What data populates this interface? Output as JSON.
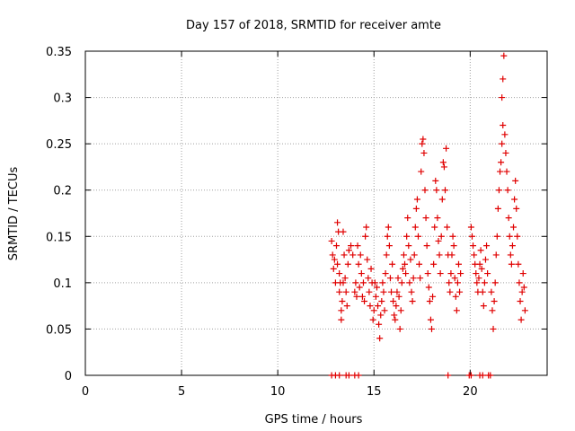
{
  "colors": {
    "marker": "#e00000",
    "grid": "#a0a0a0",
    "axis": "#000000"
  },
  "chart_data": {
    "type": "scatter",
    "title": "Day 157 of 2018, SRMTID for receiver amte",
    "xlabel": "GPS time / hours",
    "ylabel": "SRMTID / TECUs",
    "xlim": [
      0,
      24
    ],
    "ylim": [
      0,
      0.35
    ],
    "xticks": [
      0,
      5,
      10,
      15,
      20
    ],
    "xtick_labels": [
      "0",
      "5",
      "10",
      "15",
      "20"
    ],
    "yticks": [
      0,
      0.05,
      0.1,
      0.15,
      0.2,
      0.25,
      0.3,
      0.35
    ],
    "ytick_labels": [
      "0",
      "0.05",
      "0.1",
      "0.15",
      "0.2",
      "0.25",
      "0.3",
      "0.35"
    ],
    "grid": true,
    "legend": "none",
    "marker": "plus",
    "series": [
      {
        "points": [
          [
            12.8,
            0.145
          ],
          [
            12.85,
            0.13
          ],
          [
            12.9,
            0.115
          ],
          [
            12.95,
            0.125
          ],
          [
            13.0,
            0.1
          ],
          [
            13.05,
            0.14
          ],
          [
            13.1,
            0.12
          ],
          [
            13.1,
            0.165
          ],
          [
            13.15,
            0.155
          ],
          [
            13.2,
            0.11
          ],
          [
            13.2,
            0.09
          ],
          [
            13.25,
            0.1
          ],
          [
            13.3,
            0.07
          ],
          [
            13.3,
            0.06
          ],
          [
            13.35,
            0.08
          ],
          [
            13.4,
            0.1
          ],
          [
            13.4,
            0.155
          ],
          [
            13.45,
            0.13
          ],
          [
            13.5,
            0.105
          ],
          [
            13.55,
            0.09
          ],
          [
            13.6,
            0.075
          ],
          [
            13.65,
            0.12
          ],
          [
            13.7,
            0.135
          ],
          [
            13.8,
            0.14
          ],
          [
            13.9,
            0.13
          ],
          [
            14.0,
            0.09
          ],
          [
            14.05,
            0.1
          ],
          [
            14.1,
            0.085
          ],
          [
            14.15,
            0.14
          ],
          [
            14.2,
            0.12
          ],
          [
            14.25,
            0.095
          ],
          [
            14.3,
            0.13
          ],
          [
            14.35,
            0.11
          ],
          [
            14.4,
            0.085
          ],
          [
            14.45,
            0.1
          ],
          [
            14.5,
            0.08
          ],
          [
            14.55,
            0.15
          ],
          [
            14.6,
            0.16
          ],
          [
            14.65,
            0.125
          ],
          [
            14.7,
            0.105
          ],
          [
            14.75,
            0.09
          ],
          [
            14.8,
            0.075
          ],
          [
            14.85,
            0.115
          ],
          [
            14.9,
            0.1
          ],
          [
            14.95,
            0.06
          ],
          [
            15.0,
            0.07
          ],
          [
            15.05,
            0.1
          ],
          [
            15.1,
            0.085
          ],
          [
            15.15,
            0.095
          ],
          [
            15.2,
            0.075
          ],
          [
            15.25,
            0.055
          ],
          [
            15.3,
            0.04
          ],
          [
            15.35,
            0.065
          ],
          [
            15.4,
            0.08
          ],
          [
            15.45,
            0.1
          ],
          [
            15.5,
            0.09
          ],
          [
            15.55,
            0.07
          ],
          [
            15.6,
            0.11
          ],
          [
            15.65,
            0.13
          ],
          [
            15.7,
            0.15
          ],
          [
            15.75,
            0.16
          ],
          [
            15.8,
            0.14
          ],
          [
            15.85,
            0.105
          ],
          [
            15.9,
            0.09
          ],
          [
            15.95,
            0.12
          ],
          [
            16.0,
            0.08
          ],
          [
            16.05,
            0.065
          ],
          [
            16.1,
            0.06
          ],
          [
            16.15,
            0.075
          ],
          [
            16.2,
            0.09
          ],
          [
            16.25,
            0.105
          ],
          [
            16.3,
            0.085
          ],
          [
            16.35,
            0.05
          ],
          [
            16.4,
            0.07
          ],
          [
            16.45,
            0.1
          ],
          [
            16.5,
            0.115
          ],
          [
            16.55,
            0.13
          ],
          [
            16.6,
            0.12
          ],
          [
            16.65,
            0.11
          ],
          [
            16.7,
            0.15
          ],
          [
            16.75,
            0.17
          ],
          [
            16.8,
            0.14
          ],
          [
            16.85,
            0.1
          ],
          [
            16.9,
            0.125
          ],
          [
            16.95,
            0.09
          ],
          [
            17.0,
            0.08
          ],
          [
            17.05,
            0.105
          ],
          [
            17.1,
            0.13
          ],
          [
            17.15,
            0.16
          ],
          [
            17.2,
            0.18
          ],
          [
            17.25,
            0.19
          ],
          [
            17.3,
            0.15
          ],
          [
            17.35,
            0.12
          ],
          [
            17.4,
            0.105
          ],
          [
            17.45,
            0.22
          ],
          [
            17.5,
            0.25
          ],
          [
            17.55,
            0.255
          ],
          [
            17.6,
            0.24
          ],
          [
            17.65,
            0.2
          ],
          [
            17.7,
            0.17
          ],
          [
            17.75,
            0.14
          ],
          [
            17.8,
            0.11
          ],
          [
            17.85,
            0.095
          ],
          [
            17.9,
            0.08
          ],
          [
            17.95,
            0.06
          ],
          [
            18.0,
            0.05
          ],
          [
            18.05,
            0.085
          ],
          [
            18.1,
            0.12
          ],
          [
            18.15,
            0.16
          ],
          [
            18.2,
            0.21
          ],
          [
            18.25,
            0.2
          ],
          [
            18.3,
            0.17
          ],
          [
            18.35,
            0.145
          ],
          [
            18.4,
            0.13
          ],
          [
            18.45,
            0.11
          ],
          [
            18.5,
            0.15
          ],
          [
            18.55,
            0.19
          ],
          [
            18.6,
            0.23
          ],
          [
            18.65,
            0.225
          ],
          [
            18.7,
            0.2
          ],
          [
            18.75,
            0.245
          ],
          [
            18.8,
            0.16
          ],
          [
            18.85,
            0.13
          ],
          [
            18.9,
            0.1
          ],
          [
            18.95,
            0.09
          ],
          [
            19.0,
            0.11
          ],
          [
            19.05,
            0.13
          ],
          [
            19.1,
            0.15
          ],
          [
            19.15,
            0.14
          ],
          [
            19.2,
            0.105
          ],
          [
            19.25,
            0.085
          ],
          [
            19.3,
            0.07
          ],
          [
            19.35,
            0.1
          ],
          [
            19.4,
            0.12
          ],
          [
            19.45,
            0.09
          ],
          [
            19.5,
            0.11
          ],
          [
            20.05,
            0.16
          ],
          [
            20.1,
            0.15
          ],
          [
            20.15,
            0.14
          ],
          [
            20.2,
            0.13
          ],
          [
            20.25,
            0.12
          ],
          [
            20.3,
            0.11
          ],
          [
            20.35,
            0.1
          ],
          [
            20.4,
            0.09
          ],
          [
            20.45,
            0.105
          ],
          [
            20.5,
            0.12
          ],
          [
            20.55,
            0.135
          ],
          [
            20.6,
            0.115
          ],
          [
            20.65,
            0.09
          ],
          [
            20.7,
            0.075
          ],
          [
            20.75,
            0.1
          ],
          [
            20.8,
            0.125
          ],
          [
            20.85,
            0.14
          ],
          [
            20.9,
            0.11
          ],
          [
            21.1,
            0.09
          ],
          [
            21.15,
            0.07
          ],
          [
            21.2,
            0.05
          ],
          [
            21.25,
            0.08
          ],
          [
            21.3,
            0.1
          ],
          [
            21.35,
            0.13
          ],
          [
            21.4,
            0.15
          ],
          [
            21.45,
            0.18
          ],
          [
            21.5,
            0.2
          ],
          [
            21.55,
            0.22
          ],
          [
            21.6,
            0.23
          ],
          [
            21.65,
            0.25
          ],
          [
            21.65,
            0.3
          ],
          [
            21.7,
            0.32
          ],
          [
            21.75,
            0.345
          ],
          [
            21.7,
            0.27
          ],
          [
            21.8,
            0.26
          ],
          [
            21.85,
            0.24
          ],
          [
            21.9,
            0.22
          ],
          [
            21.95,
            0.2
          ],
          [
            22.0,
            0.17
          ],
          [
            22.05,
            0.15
          ],
          [
            22.1,
            0.13
          ],
          [
            22.15,
            0.12
          ],
          [
            22.2,
            0.14
          ],
          [
            22.25,
            0.16
          ],
          [
            22.3,
            0.19
          ],
          [
            22.35,
            0.21
          ],
          [
            22.4,
            0.18
          ],
          [
            22.45,
            0.15
          ],
          [
            22.5,
            0.12
          ],
          [
            22.55,
            0.1
          ],
          [
            22.6,
            0.08
          ],
          [
            22.65,
            0.06
          ],
          [
            22.7,
            0.09
          ],
          [
            22.75,
            0.11
          ],
          [
            22.8,
            0.095
          ],
          [
            22.85,
            0.07
          ]
        ]
      },
      {
        "points": [
          [
            12.8,
            0
          ],
          [
            13.0,
            0
          ],
          [
            13.2,
            0
          ],
          [
            13.55,
            0
          ],
          [
            13.7,
            0
          ],
          [
            14.0,
            0
          ],
          [
            14.2,
            0
          ],
          [
            18.85,
            0
          ],
          [
            19.95,
            0
          ],
          [
            20.05,
            0
          ],
          [
            20.5,
            0
          ],
          [
            20.65,
            0
          ],
          [
            20.95,
            0
          ],
          [
            21.05,
            0
          ]
        ]
      }
    ]
  }
}
